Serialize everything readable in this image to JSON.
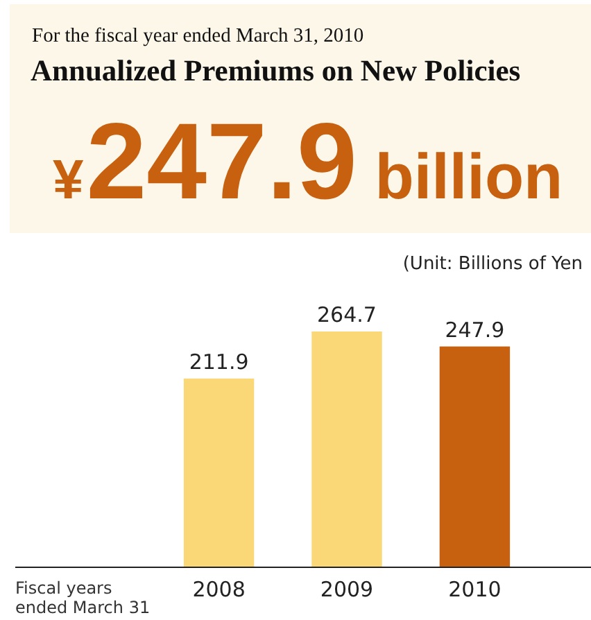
{
  "chart_data": {
    "type": "bar",
    "subtitle": "For the fiscal year ended March 31, 2010",
    "title": "Annualized Premiums on New Policies",
    "annotations": [
      "¥247.9 billion",
      "(Unit: Billions of Yen"
    ],
    "xlabel": "Fiscal years\nended March 31",
    "categories": [
      "2008",
      "2009",
      "2010"
    ],
    "values": [
      211.9,
      264.7,
      247.9
    ],
    "colors": [
      "#fad877",
      "#fad877",
      "#c8610f"
    ],
    "data_labels": true
  }
}
